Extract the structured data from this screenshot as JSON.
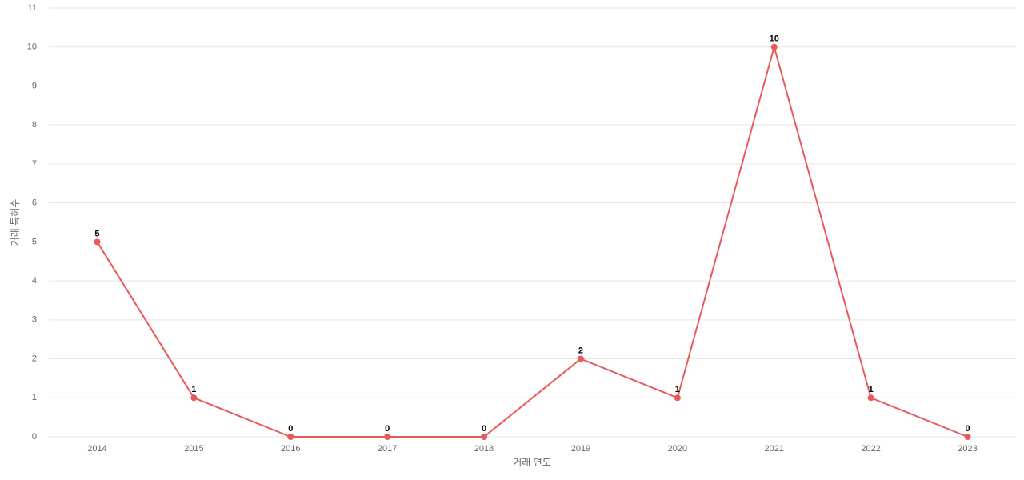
{
  "chart_data": {
    "type": "line",
    "x_label": "거래 연도",
    "y_label": "거래 특허수",
    "categories": [
      "2014",
      "2015",
      "2016",
      "2017",
      "2018",
      "2019",
      "2020",
      "2021",
      "2022",
      "2023"
    ],
    "values": [
      5,
      1,
      0,
      0,
      0,
      2,
      1,
      10,
      1,
      0
    ],
    "color": "#e85a5a",
    "ylim": [
      0,
      11
    ],
    "yticks": [
      0,
      1,
      2,
      3,
      4,
      5,
      6,
      7,
      8,
      9,
      10,
      11
    ],
    "grid": true,
    "data_labels": true
  }
}
